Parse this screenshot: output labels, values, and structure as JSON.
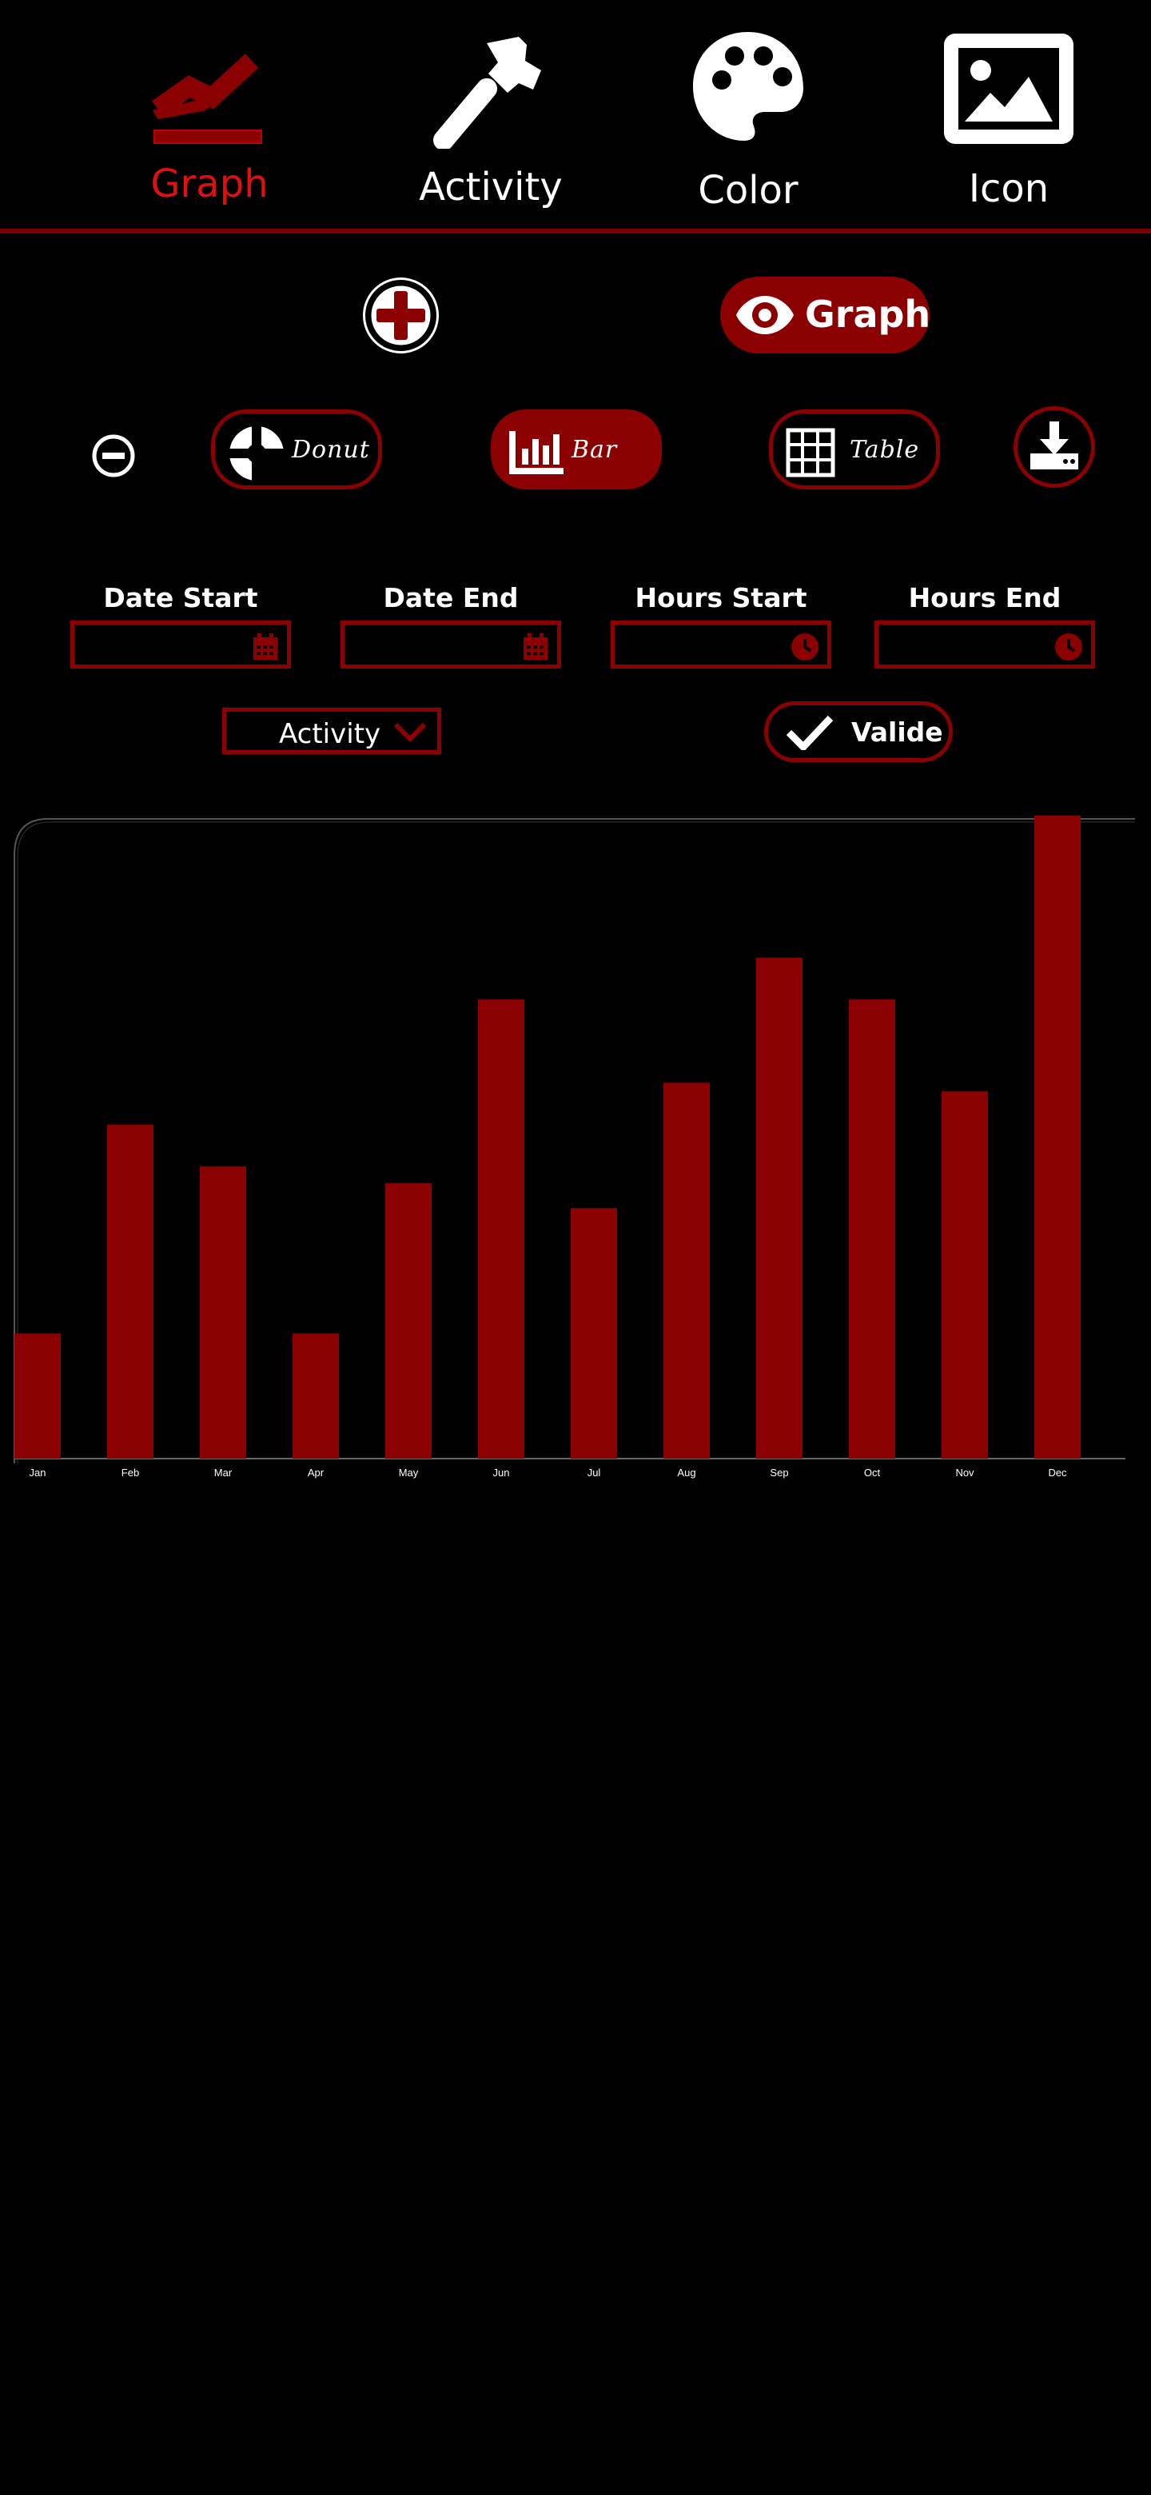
{
  "nav": {
    "items": [
      {
        "label": "Graph",
        "icon": "line-chart-icon",
        "active": true
      },
      {
        "label": "Activity",
        "icon": "hammer-icon",
        "active": false
      },
      {
        "label": "Color",
        "icon": "palette-icon",
        "active": false
      },
      {
        "label": "Icon",
        "icon": "image-icon",
        "active": false
      }
    ]
  },
  "actions": {
    "view_label": "Graph"
  },
  "chart_types": {
    "donut": "Donut",
    "bar": "Bar",
    "table": "Table",
    "selected": "bar"
  },
  "filters": {
    "date_start_label": "Date Start",
    "date_end_label": "Date End",
    "hours_start_label": "Hours Start",
    "hours_end_label": "Hours End",
    "date_start_value": "",
    "date_end_value": "",
    "hours_start_value": "",
    "hours_end_value": "",
    "activity_value": "Activity",
    "validate_label": "Valide"
  },
  "colors": {
    "accent": "#8b0000",
    "active_text": "#e01010",
    "background": "#000000"
  },
  "chart_data": {
    "type": "bar",
    "categories": [
      "Jan",
      "Feb",
      "Mar",
      "Apr",
      "May",
      "Jun",
      "Jul",
      "Aug",
      "Sep",
      "Oct",
      "Nov",
      "Dec"
    ],
    "values": [
      15,
      40,
      35,
      15,
      33,
      55,
      30,
      45,
      60,
      55,
      44,
      77
    ],
    "title": "",
    "xlabel": "",
    "ylabel": "",
    "ylim": [
      0,
      77
    ],
    "grid": false,
    "color": "#8b0000"
  }
}
